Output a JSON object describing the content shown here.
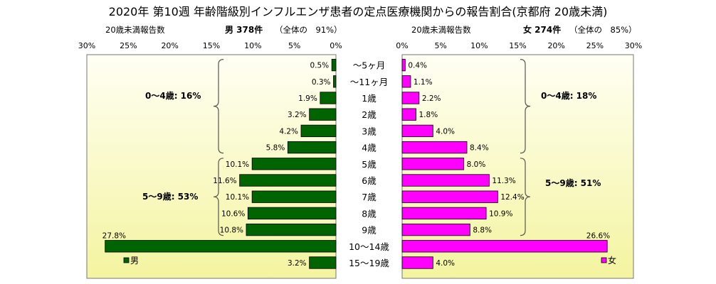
{
  "chart_data": {
    "type": "bar",
    "title": "2020年 第10週 年齢階級別インフルエンザ患者の定点医療機関からの報告割合(京都府 20歳未満)",
    "categories": [
      "～5ヶ月",
      "～11ヶ月",
      "1歳",
      "2歳",
      "3歳",
      "4歳",
      "5歳",
      "6歳",
      "7歳",
      "8歳",
      "9歳",
      "10～14歳",
      "15～19歳"
    ],
    "xlim": [
      0,
      30
    ],
    "ticks": [
      30,
      25,
      20,
      15,
      10,
      5,
      0
    ],
    "tick_labels_left": [
      "30%",
      "25%",
      "20%",
      "15%",
      "10%",
      "5%",
      "0%"
    ],
    "tick_labels_right": [
      "0%",
      "5%",
      "10%",
      "15%",
      "20%",
      "25%",
      "30%"
    ],
    "series": [
      {
        "name": "男",
        "side": "left",
        "color": "#006400",
        "header_label": "20歳未満報告数",
        "header_main": "男 378件",
        "header_note": "（全体の　91%）",
        "values": [
          0.5,
          0.3,
          1.9,
          3.2,
          4.2,
          5.8,
          10.1,
          11.6,
          10.1,
          10.6,
          10.8,
          27.8,
          3.2
        ],
        "labels": [
          "0.5%",
          "0.3%",
          "1.9%",
          "3.2%",
          "4.2%",
          "5.8%",
          "10.1%",
          "11.6%",
          "10.1%",
          "10.6%",
          "10.8%",
          "27.8%",
          "3.2%"
        ]
      },
      {
        "name": "女",
        "side": "right",
        "color": "#ff00ff",
        "header_label": "20歳未満報告数",
        "header_main": "女 274件",
        "header_note": "（全体の　85%）",
        "values": [
          0.4,
          1.1,
          2.2,
          1.8,
          4.0,
          8.4,
          8.0,
          11.3,
          12.4,
          10.9,
          8.8,
          26.6,
          4.0
        ],
        "labels": [
          "0.4%",
          "1.1%",
          "2.2%",
          "1.8%",
          "4.0%",
          "8.4%",
          "8.0%",
          "11.3%",
          "12.4%",
          "10.9%",
          "8.8%",
          "26.6%",
          "4.0%"
        ]
      }
    ],
    "annotations": {
      "left_group1": "0～4歳: 16%",
      "left_group2": "5～9歳: 53%",
      "right_group1": "0～4歳: 18%",
      "right_group2": "5～9歳: 51%"
    },
    "legend": {
      "left": "男",
      "right": "女"
    },
    "background_gradient": [
      "#fffff4",
      "#f4f4a0"
    ]
  }
}
